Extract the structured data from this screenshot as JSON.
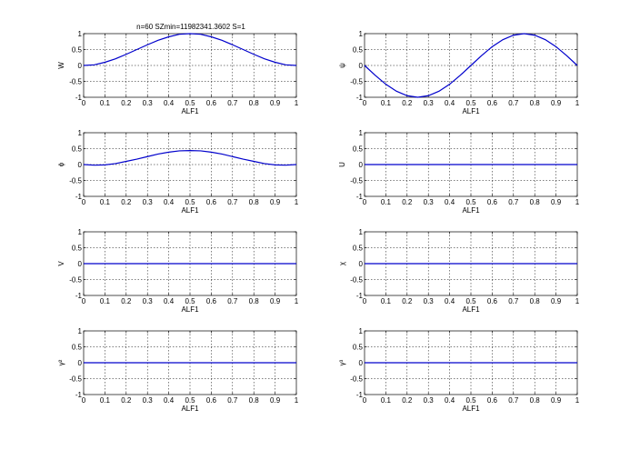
{
  "figure": {
    "title": "n=60 SZmin=11982341.3602 S=1",
    "background": "#ffffff",
    "line_color": "#0000cc"
  },
  "chart_data": [
    {
      "type": "line",
      "xlabel": "ALF1",
      "ylabel": "W",
      "xlim": [
        0,
        1
      ],
      "ylim": [
        -1,
        1
      ],
      "xticks": [
        "0",
        "0.1",
        "0.2",
        "0.3",
        "0.4",
        "0.5",
        "0.6",
        "0.7",
        "0.8",
        "0.9",
        "1"
      ],
      "yticks": [
        "-1",
        "-0.5",
        "0",
        "0.5",
        "1"
      ],
      "grid": true,
      "x": [
        0,
        0.05,
        0.1,
        0.15,
        0.2,
        0.25,
        0.3,
        0.35,
        0.4,
        0.45,
        0.5,
        0.55,
        0.6,
        0.65,
        0.7,
        0.75,
        0.8,
        0.85,
        0.9,
        0.95,
        1
      ],
      "y": [
        0,
        0.02,
        0.1,
        0.21,
        0.35,
        0.5,
        0.65,
        0.79,
        0.9,
        0.98,
        1,
        0.98,
        0.9,
        0.79,
        0.65,
        0.5,
        0.35,
        0.21,
        0.1,
        0.02,
        0
      ]
    },
    {
      "type": "line",
      "xlabel": "ALF1",
      "ylabel": "ψ",
      "xlim": [
        0,
        1
      ],
      "ylim": [
        -1,
        1
      ],
      "xticks": [
        "0",
        "0.1",
        "0.2",
        "0.3",
        "0.4",
        "0.5",
        "0.6",
        "0.7",
        "0.8",
        "0.9",
        "1"
      ],
      "yticks": [
        "-1",
        "-0.5",
        "0",
        "0.5",
        "1"
      ],
      "grid": true,
      "x": [
        0,
        0.05,
        0.1,
        0.15,
        0.2,
        0.25,
        0.3,
        0.35,
        0.4,
        0.45,
        0.5,
        0.55,
        0.6,
        0.65,
        0.7,
        0.75,
        0.8,
        0.85,
        0.9,
        0.95,
        1
      ],
      "y": [
        0,
        -0.31,
        -0.59,
        -0.81,
        -0.95,
        -1,
        -0.95,
        -0.81,
        -0.59,
        -0.31,
        0,
        0.31,
        0.59,
        0.81,
        0.95,
        1,
        0.95,
        0.81,
        0.59,
        0.31,
        0
      ]
    },
    {
      "type": "line",
      "xlabel": "ALF1",
      "ylabel": "ϕ",
      "xlim": [
        0,
        1
      ],
      "ylim": [
        -1,
        1
      ],
      "xticks": [
        "0",
        "0.1",
        "0.2",
        "0.3",
        "0.4",
        "0.5",
        "0.6",
        "0.7",
        "0.8",
        "0.9",
        "1"
      ],
      "yticks": [
        "-1",
        "-0.5",
        "0",
        "0.5",
        "1"
      ],
      "grid": true,
      "x": [
        0,
        0.05,
        0.1,
        0.15,
        0.2,
        0.25,
        0.3,
        0.35,
        0.4,
        0.45,
        0.5,
        0.55,
        0.6,
        0.65,
        0.7,
        0.75,
        0.8,
        0.85,
        0.9,
        0.95,
        1
      ],
      "y": [
        0,
        -0.02,
        -0.01,
        0.03,
        0.1,
        0.17,
        0.25,
        0.33,
        0.39,
        0.43,
        0.44,
        0.43,
        0.39,
        0.33,
        0.25,
        0.17,
        0.1,
        0.03,
        -0.01,
        -0.02,
        0
      ]
    },
    {
      "type": "line",
      "xlabel": "ALF1",
      "ylabel": "U",
      "xlim": [
        0,
        1
      ],
      "ylim": [
        -1,
        1
      ],
      "xticks": [
        "0",
        "0.1",
        "0.2",
        "0.3",
        "0.4",
        "0.5",
        "0.6",
        "0.7",
        "0.8",
        "0.9",
        "1"
      ],
      "yticks": [
        "-1",
        "-0.5",
        "0",
        "0.5",
        "1"
      ],
      "grid": true,
      "x": [
        0,
        1
      ],
      "y": [
        0,
        0
      ]
    },
    {
      "type": "line",
      "xlabel": "ALF1",
      "ylabel": "V",
      "xlim": [
        0,
        1
      ],
      "ylim": [
        -1,
        1
      ],
      "xticks": [
        "0",
        "0.1",
        "0.2",
        "0.3",
        "0.4",
        "0.5",
        "0.6",
        "0.7",
        "0.8",
        "0.9",
        "1"
      ],
      "yticks": [
        "-1",
        "-0.5",
        "0",
        "0.5",
        "1"
      ],
      "grid": true,
      "x": [
        0,
        1
      ],
      "y": [
        0,
        0
      ]
    },
    {
      "type": "line",
      "xlabel": "ALF1",
      "ylabel": "χ",
      "xlim": [
        0,
        1
      ],
      "ylim": [
        -1,
        1
      ],
      "xticks": [
        "0",
        "0.1",
        "0.2",
        "0.3",
        "0.4",
        "0.5",
        "0.6",
        "0.7",
        "0.8",
        "0.9",
        "1"
      ],
      "yticks": [
        "-1",
        "-0.5",
        "0",
        "0.5",
        "1"
      ],
      "grid": true,
      "x": [
        0,
        1
      ],
      "y": [
        0,
        0
      ]
    },
    {
      "type": "line",
      "xlabel": "ALF1",
      "ylabel": "γ²",
      "xlim": [
        0,
        1
      ],
      "ylim": [
        -1,
        1
      ],
      "xticks": [
        "0",
        "0.1",
        "0.2",
        "0.3",
        "0.4",
        "0.5",
        "0.6",
        "0.7",
        "0.8",
        "0.9",
        "1"
      ],
      "yticks": [
        "-1",
        "-0.5",
        "0",
        "0.5",
        "1"
      ],
      "grid": true,
      "x": [
        0,
        1
      ],
      "y": [
        0,
        0
      ]
    },
    {
      "type": "line",
      "xlabel": "ALF1",
      "ylabel": "γ³",
      "xlim": [
        0,
        1
      ],
      "ylim": [
        -1,
        1
      ],
      "xticks": [
        "0",
        "0.1",
        "0.2",
        "0.3",
        "0.4",
        "0.5",
        "0.6",
        "0.7",
        "0.8",
        "0.9",
        "1"
      ],
      "yticks": [
        "-1",
        "-0.5",
        "0",
        "0.5",
        "1"
      ],
      "grid": true,
      "x": [
        0,
        1
      ],
      "y": [
        0,
        0
      ]
    }
  ]
}
